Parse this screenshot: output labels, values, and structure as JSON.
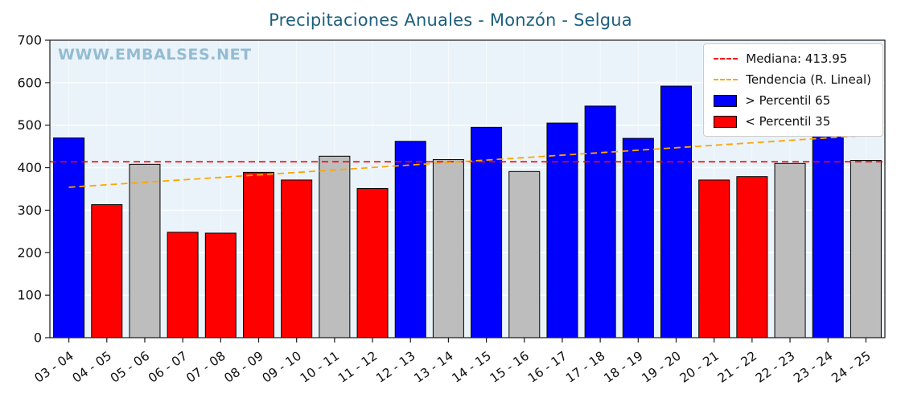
{
  "watermark": "WWW.EMBALSES.NET",
  "chart_data": {
    "type": "bar",
    "title": "Precipitaciones Anuales - Monzón - Selgua",
    "xlabel": "",
    "ylabel": "",
    "ylim": [
      0,
      700
    ],
    "yticks": [
      0,
      100,
      200,
      300,
      400,
      500,
      600,
      700
    ],
    "grid": true,
    "legend_position": "upper right",
    "categories": [
      "03 - 04",
      "04 - 05",
      "05 - 06",
      "06 - 07",
      "07 - 08",
      "08 - 09",
      "09 - 10",
      "10 - 11",
      "11 - 12",
      "12 - 13",
      "13 - 14",
      "14 - 15",
      "15 - 16",
      "16 - 17",
      "17 - 18",
      "18 - 19",
      "19 - 20",
      "20 - 21",
      "21 - 22",
      "22 - 23",
      "23 - 24",
      "24 - 25"
    ],
    "values": [
      470,
      313,
      408,
      248,
      246,
      389,
      371,
      427,
      351,
      462,
      419,
      495,
      391,
      505,
      545,
      469,
      592,
      371,
      379,
      410,
      515,
      417
    ],
    "bar_classes": [
      "p65",
      "p35",
      "mid",
      "p35",
      "p35",
      "p35",
      "p35",
      "mid",
      "p35",
      "p65",
      "mid",
      "p65",
      "mid",
      "p65",
      "p65",
      "p65",
      "p65",
      "p35",
      "p35",
      "mid",
      "p65",
      "mid"
    ],
    "median": 413.95,
    "trend": {
      "start_value": 354,
      "end_value": 476
    },
    "colors": {
      "p65": "#0000ff",
      "p35": "#ff0000",
      "mid": "#bdbdbd",
      "median": "#ff0000",
      "trend": "#ffa500",
      "plot_bg": "#eaf3f9",
      "grid": "#ffffff",
      "frame": "#1a1a1a"
    },
    "legend": [
      {
        "label": "Mediana: 413.95",
        "marker": "dashed-line",
        "color": "#ff0000"
      },
      {
        "label": "Tendencia (R. Lineal)",
        "marker": "dashed-line",
        "color": "#ffa500"
      },
      {
        "label": "> Percentil 65",
        "marker": "patch",
        "color": "#0000ff"
      },
      {
        "label": "< Percentil 35",
        "marker": "patch",
        "color": "#ff0000"
      }
    ]
  }
}
